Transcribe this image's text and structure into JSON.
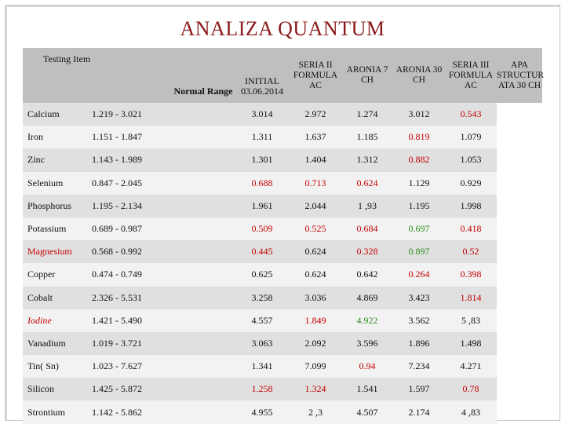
{
  "title": "ANALIZA QUANTUM",
  "headers": {
    "item": "Testing Item",
    "range": "Normal Range",
    "initial": "INITIAL 03.06.2014",
    "c1": "SERIA II FORMULA AC",
    "c2": "ARONIA 7 CH",
    "c3": "ARONIA 30 CH",
    "c4": "SERIA III FORMULA AC",
    "c5": "APA STRUCTUR ATA 30 CH"
  },
  "colors": {
    "title": "#8b1a1a",
    "red": "#c40000",
    "green": "#2f8f1f",
    "header_bg": "#bfbfbf"
  },
  "rows": [
    {
      "item": "Calcium",
      "range": "1.219 - 3.021",
      "initial": "",
      "v": [
        "3.014",
        "2.972",
        "1.274",
        "3.012",
        "0.543"
      ]
    },
    {
      "item": "Iron",
      "range": "1.151 - 1.847",
      "initial": "",
      "v": [
        "1.311",
        "1.637",
        "1.185",
        "0.819",
        "1.079"
      ]
    },
    {
      "item": "Zinc",
      "range": "1.143 - 1.989",
      "initial": "",
      "v": [
        "1.301",
        "1.404",
        "1.312",
        "0.882",
        "1.053"
      ]
    },
    {
      "item": "Selenium",
      "range": "0.847 - 2.045",
      "initial": "",
      "v": [
        "0.688",
        "0.713",
        "0.624",
        "1.129",
        "0.929"
      ]
    },
    {
      "item": "Phosphorus",
      "range": "1.195 - 2.134",
      "initial": "",
      "v": [
        "1.961",
        "2.044",
        "1 ,93",
        "1.195",
        "1.998"
      ]
    },
    {
      "item": "Potassium",
      "range": "0.689 - 0.987",
      "initial": "",
      "v": [
        "0.509",
        "0.525",
        "0.684",
        "0.697",
        "0.418"
      ]
    },
    {
      "item": "Magnesium",
      "range": "0.568 - 0.992",
      "initial": "",
      "v": [
        "0.445",
        "0.624",
        "0.328",
        "0.897",
        "0.52"
      ]
    },
    {
      "item": "Copper",
      "range": "0.474 - 0.749",
      "initial": "",
      "v": [
        "0.625",
        "0.624",
        "0.642",
        "0.264",
        "0.398"
      ]
    },
    {
      "item": "Cobalt",
      "range": "2.326 - 5.531",
      "initial": "",
      "v": [
        "3.258",
        "3.036",
        "4.869",
        "3.423",
        "1.814"
      ]
    },
    {
      "item": "Iodine",
      "range": "1.421 - 5.490",
      "initial": "",
      "v": [
        "4.557",
        "1.849",
        "4.922",
        "3.562",
        "5 ,83"
      ]
    },
    {
      "item": "Vanadium",
      "range": "1.019 - 3.721",
      "initial": "",
      "v": [
        "3.063",
        "2.092",
        "3.596",
        "1.896",
        "1.498"
      ]
    },
    {
      "item": "Tin( Sn)",
      "range": "1.023 - 7.627",
      "initial": "",
      "v": [
        "1.341",
        "7.099",
        "0.94",
        "7.234",
        "4.271"
      ]
    },
    {
      "item": "Silicon",
      "range": "1.425 - 5.872",
      "initial": "",
      "v": [
        "1.258",
        "1.324",
        "1.541",
        "1.597",
        "0.78"
      ]
    },
    {
      "item": "Strontium",
      "range": "1.142 - 5.862",
      "initial": "",
      "v": [
        "4.955",
        "2 ,3",
        "4.507",
        "2.174",
        "4 ,83"
      ]
    }
  ]
}
